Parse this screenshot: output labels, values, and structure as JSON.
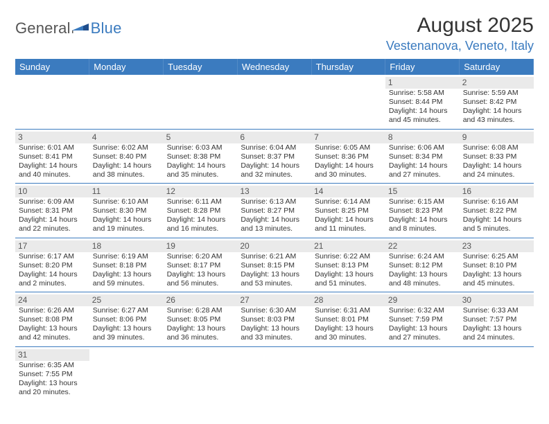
{
  "brand": {
    "part1": "General",
    "part2": "Blue"
  },
  "title": "August 2025",
  "location": "Vestenanova, Veneto, Italy",
  "colors": {
    "accent": "#3b7bbf",
    "header_bg": "#3b7bbf",
    "daynum_bg": "#eaeaea",
    "text": "#333333"
  },
  "day_headers": [
    "Sunday",
    "Monday",
    "Tuesday",
    "Wednesday",
    "Thursday",
    "Friday",
    "Saturday"
  ],
  "weeks": [
    [
      null,
      null,
      null,
      null,
      null,
      {
        "n": "1",
        "sunrise": "Sunrise: 5:58 AM",
        "sunset": "Sunset: 8:44 PM",
        "day1": "Daylight: 14 hours",
        "day2": "and 45 minutes."
      },
      {
        "n": "2",
        "sunrise": "Sunrise: 5:59 AM",
        "sunset": "Sunset: 8:42 PM",
        "day1": "Daylight: 14 hours",
        "day2": "and 43 minutes."
      }
    ],
    [
      {
        "n": "3",
        "sunrise": "Sunrise: 6:01 AM",
        "sunset": "Sunset: 8:41 PM",
        "day1": "Daylight: 14 hours",
        "day2": "and 40 minutes."
      },
      {
        "n": "4",
        "sunrise": "Sunrise: 6:02 AM",
        "sunset": "Sunset: 8:40 PM",
        "day1": "Daylight: 14 hours",
        "day2": "and 38 minutes."
      },
      {
        "n": "5",
        "sunrise": "Sunrise: 6:03 AM",
        "sunset": "Sunset: 8:38 PM",
        "day1": "Daylight: 14 hours",
        "day2": "and 35 minutes."
      },
      {
        "n": "6",
        "sunrise": "Sunrise: 6:04 AM",
        "sunset": "Sunset: 8:37 PM",
        "day1": "Daylight: 14 hours",
        "day2": "and 32 minutes."
      },
      {
        "n": "7",
        "sunrise": "Sunrise: 6:05 AM",
        "sunset": "Sunset: 8:36 PM",
        "day1": "Daylight: 14 hours",
        "day2": "and 30 minutes."
      },
      {
        "n": "8",
        "sunrise": "Sunrise: 6:06 AM",
        "sunset": "Sunset: 8:34 PM",
        "day1": "Daylight: 14 hours",
        "day2": "and 27 minutes."
      },
      {
        "n": "9",
        "sunrise": "Sunrise: 6:08 AM",
        "sunset": "Sunset: 8:33 PM",
        "day1": "Daylight: 14 hours",
        "day2": "and 24 minutes."
      }
    ],
    [
      {
        "n": "10",
        "sunrise": "Sunrise: 6:09 AM",
        "sunset": "Sunset: 8:31 PM",
        "day1": "Daylight: 14 hours",
        "day2": "and 22 minutes."
      },
      {
        "n": "11",
        "sunrise": "Sunrise: 6:10 AM",
        "sunset": "Sunset: 8:30 PM",
        "day1": "Daylight: 14 hours",
        "day2": "and 19 minutes."
      },
      {
        "n": "12",
        "sunrise": "Sunrise: 6:11 AM",
        "sunset": "Sunset: 8:28 PM",
        "day1": "Daylight: 14 hours",
        "day2": "and 16 minutes."
      },
      {
        "n": "13",
        "sunrise": "Sunrise: 6:13 AM",
        "sunset": "Sunset: 8:27 PM",
        "day1": "Daylight: 14 hours",
        "day2": "and 13 minutes."
      },
      {
        "n": "14",
        "sunrise": "Sunrise: 6:14 AM",
        "sunset": "Sunset: 8:25 PM",
        "day1": "Daylight: 14 hours",
        "day2": "and 11 minutes."
      },
      {
        "n": "15",
        "sunrise": "Sunrise: 6:15 AM",
        "sunset": "Sunset: 8:23 PM",
        "day1": "Daylight: 14 hours",
        "day2": "and 8 minutes."
      },
      {
        "n": "16",
        "sunrise": "Sunrise: 6:16 AM",
        "sunset": "Sunset: 8:22 PM",
        "day1": "Daylight: 14 hours",
        "day2": "and 5 minutes."
      }
    ],
    [
      {
        "n": "17",
        "sunrise": "Sunrise: 6:17 AM",
        "sunset": "Sunset: 8:20 PM",
        "day1": "Daylight: 14 hours",
        "day2": "and 2 minutes."
      },
      {
        "n": "18",
        "sunrise": "Sunrise: 6:19 AM",
        "sunset": "Sunset: 8:18 PM",
        "day1": "Daylight: 13 hours",
        "day2": "and 59 minutes."
      },
      {
        "n": "19",
        "sunrise": "Sunrise: 6:20 AM",
        "sunset": "Sunset: 8:17 PM",
        "day1": "Daylight: 13 hours",
        "day2": "and 56 minutes."
      },
      {
        "n": "20",
        "sunrise": "Sunrise: 6:21 AM",
        "sunset": "Sunset: 8:15 PM",
        "day1": "Daylight: 13 hours",
        "day2": "and 53 minutes."
      },
      {
        "n": "21",
        "sunrise": "Sunrise: 6:22 AM",
        "sunset": "Sunset: 8:13 PM",
        "day1": "Daylight: 13 hours",
        "day2": "and 51 minutes."
      },
      {
        "n": "22",
        "sunrise": "Sunrise: 6:24 AM",
        "sunset": "Sunset: 8:12 PM",
        "day1": "Daylight: 13 hours",
        "day2": "and 48 minutes."
      },
      {
        "n": "23",
        "sunrise": "Sunrise: 6:25 AM",
        "sunset": "Sunset: 8:10 PM",
        "day1": "Daylight: 13 hours",
        "day2": "and 45 minutes."
      }
    ],
    [
      {
        "n": "24",
        "sunrise": "Sunrise: 6:26 AM",
        "sunset": "Sunset: 8:08 PM",
        "day1": "Daylight: 13 hours",
        "day2": "and 42 minutes."
      },
      {
        "n": "25",
        "sunrise": "Sunrise: 6:27 AM",
        "sunset": "Sunset: 8:06 PM",
        "day1": "Daylight: 13 hours",
        "day2": "and 39 minutes."
      },
      {
        "n": "26",
        "sunrise": "Sunrise: 6:28 AM",
        "sunset": "Sunset: 8:05 PM",
        "day1": "Daylight: 13 hours",
        "day2": "and 36 minutes."
      },
      {
        "n": "27",
        "sunrise": "Sunrise: 6:30 AM",
        "sunset": "Sunset: 8:03 PM",
        "day1": "Daylight: 13 hours",
        "day2": "and 33 minutes."
      },
      {
        "n": "28",
        "sunrise": "Sunrise: 6:31 AM",
        "sunset": "Sunset: 8:01 PM",
        "day1": "Daylight: 13 hours",
        "day2": "and 30 minutes."
      },
      {
        "n": "29",
        "sunrise": "Sunrise: 6:32 AM",
        "sunset": "Sunset: 7:59 PM",
        "day1": "Daylight: 13 hours",
        "day2": "and 27 minutes."
      },
      {
        "n": "30",
        "sunrise": "Sunrise: 6:33 AM",
        "sunset": "Sunset: 7:57 PM",
        "day1": "Daylight: 13 hours",
        "day2": "and 24 minutes."
      }
    ],
    [
      {
        "n": "31",
        "sunrise": "Sunrise: 6:35 AM",
        "sunset": "Sunset: 7:55 PM",
        "day1": "Daylight: 13 hours",
        "day2": "and 20 minutes."
      },
      null,
      null,
      null,
      null,
      null,
      null
    ]
  ]
}
